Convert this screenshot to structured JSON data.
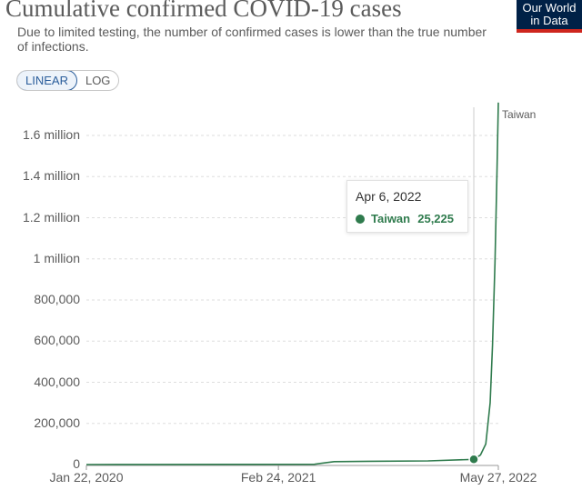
{
  "header": {
    "title": "Cumulative confirmed COVID-19 cases",
    "subtitle": "Due to limited testing, the number of confirmed cases is lower than the true number of infections.",
    "logo_line1": "Our World",
    "logo_line2": "in Data"
  },
  "controls": {
    "linear_label": "LINEAR",
    "log_label": "LOG"
  },
  "tooltip": {
    "date": "Apr 6, 2022",
    "country": "Taiwan",
    "value": "25,225"
  },
  "colors": {
    "series": "#2f7b4d",
    "grid": "#dddddd",
    "logo_bg": "#002147",
    "logo_accent": "#ce261e"
  },
  "chart_data": {
    "type": "line",
    "title": "Cumulative confirmed COVID-19 cases",
    "scale": "linear",
    "y_ticks": [
      0,
      200000,
      400000,
      600000,
      800000,
      1000000,
      1200000,
      1400000,
      1600000
    ],
    "y_tick_labels": [
      "0",
      "200,000",
      "400,000",
      "600,000",
      "800,000",
      "1 million",
      "1.2 million",
      "1.4 million",
      "1.6 million"
    ],
    "x_tick_labels": [
      "Jan 22, 2020",
      "Feb 24, 2021",
      "May 27, 2022"
    ],
    "x_ticks": [
      "2020-01-22",
      "2021-02-24",
      "2022-05-27"
    ],
    "ylim": [
      0,
      1600000
    ],
    "grid": true,
    "series": [
      {
        "name": "Taiwan",
        "x": [
          "2020-01-22",
          "2020-06-01",
          "2021-01-01",
          "2021-05-10",
          "2021-05-25",
          "2021-06-20",
          "2021-09-01",
          "2022-01-01",
          "2022-04-06",
          "2022-04-20",
          "2022-05-01",
          "2022-05-10",
          "2022-05-15",
          "2022-05-20",
          "2022-05-24",
          "2022-05-27"
        ],
        "y": [
          1,
          450,
          800,
          1500,
          6000,
          14000,
          16000,
          17500,
          25225,
          47000,
          100000,
          300000,
          580000,
          980000,
          1400000,
          1760000
        ]
      }
    ],
    "highlight": {
      "x": "2022-04-06",
      "y": 25225
    }
  }
}
